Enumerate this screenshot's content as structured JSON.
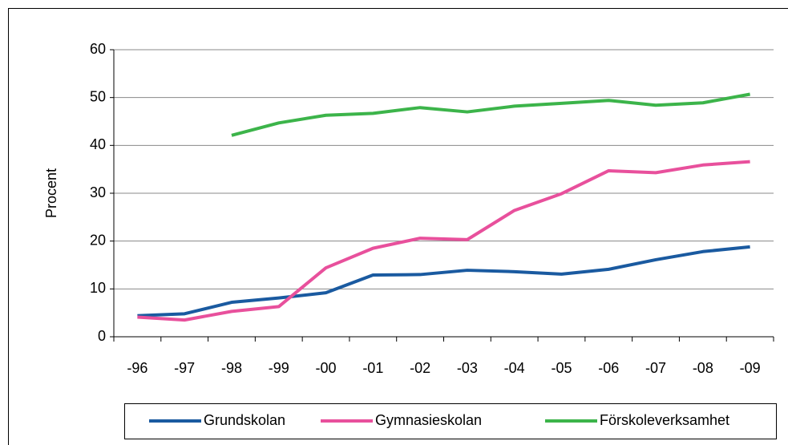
{
  "chart_data": {
    "type": "line",
    "ylabel": "Procent",
    "categories": [
      "-96",
      "-97",
      "-98",
      "-99",
      "-00",
      "-01",
      "-02",
      "-03",
      "-04",
      "-05",
      "-06",
      "-07",
      "-08",
      "-09"
    ],
    "series": [
      {
        "name": "Grundskolan",
        "color": "#1a5aa0",
        "values": [
          4.4,
          4.8,
          7.2,
          8.1,
          9.2,
          12.9,
          13.0,
          13.9,
          13.6,
          13.1,
          14.1,
          16.1,
          17.8,
          18.8
        ]
      },
      {
        "name": "Gymnasieskolan",
        "color": "#e8509c",
        "values": [
          4.1,
          3.5,
          5.3,
          6.3,
          14.4,
          18.5,
          20.6,
          20.3,
          26.4,
          29.9,
          34.7,
          34.3,
          35.9,
          36.6
        ]
      },
      {
        "name": "Förskoleverksamhet",
        "color": "#3cb44a",
        "values": [
          null,
          null,
          42.1,
          44.7,
          46.3,
          46.7,
          47.9,
          47.0,
          48.2,
          48.8,
          49.4,
          48.4,
          48.9,
          50.7
        ]
      }
    ],
    "ylim": [
      0,
      60
    ],
    "yticks": [
      0,
      10,
      20,
      30,
      40,
      50,
      60
    ],
    "grid": true,
    "legend": "bottom"
  }
}
